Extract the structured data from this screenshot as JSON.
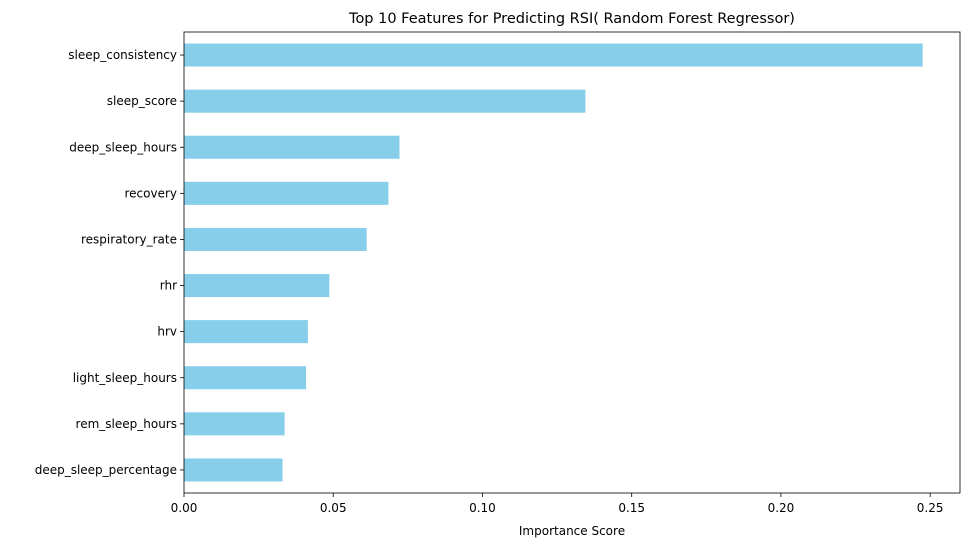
{
  "chart_data": {
    "type": "bar",
    "orientation": "horizontal",
    "title": "Top 10 Features for Predicting RSI( Random Forest Regressor)",
    "xlabel": "Importance Score",
    "ylabel": "",
    "xlim": [
      0,
      0.26
    ],
    "xticks": [
      "0.00",
      "0.05",
      "0.10",
      "0.15",
      "0.20",
      "0.25"
    ],
    "grid": false,
    "bar_color": "#87CEEB",
    "categories": [
      "sleep_consistency",
      "sleep_score",
      "deep_sleep_hours",
      "recovery",
      "respiratory_rate",
      "rhr",
      "hrv",
      "light_sleep_hours",
      "rem_sleep_hours",
      "deep_sleep_percentage"
    ],
    "values": [
      0.2475,
      0.1345,
      0.0722,
      0.0685,
      0.0612,
      0.0487,
      0.0415,
      0.0409,
      0.0337,
      0.033
    ]
  }
}
